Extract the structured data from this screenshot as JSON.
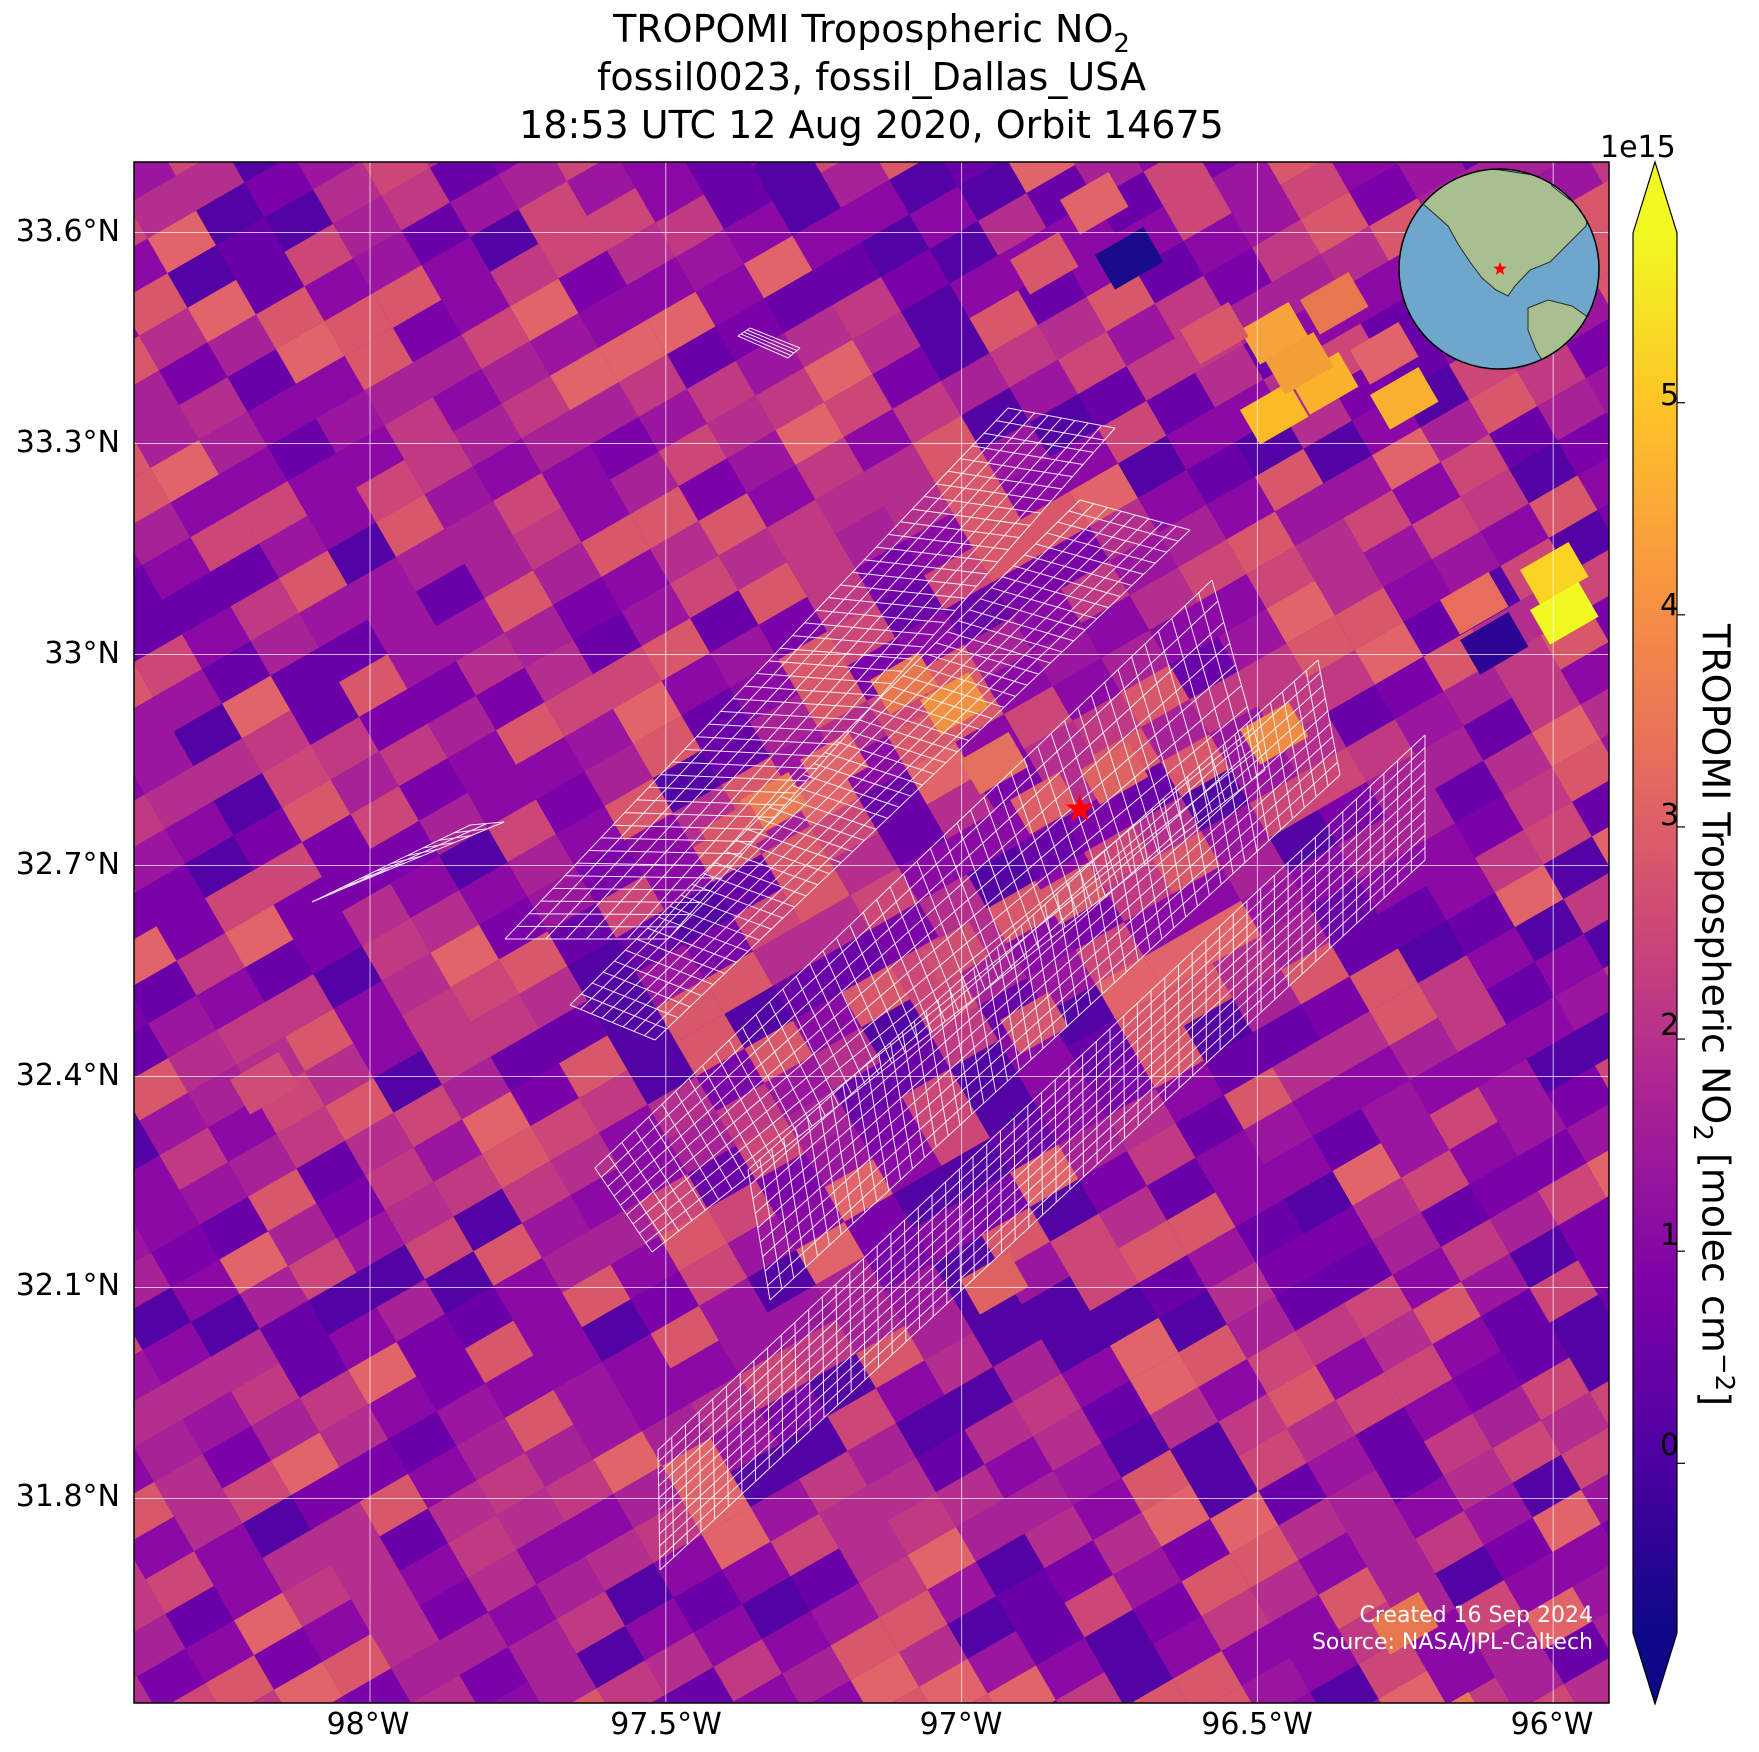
{
  "title": {
    "line1_prefix": "TROPOMI Tropospheric NO",
    "line1_sub": "2",
    "line2": "fossil0023, fossil_Dallas_USA",
    "line3": "18:53 UTC 12 Aug 2020, Orbit 14675"
  },
  "axes": {
    "lat_ticks": [
      "33.6°N",
      "33.3°N",
      "33°N",
      "32.7°N",
      "32.4°N",
      "32.1°N",
      "31.8°N"
    ],
    "lon_ticks": [
      "98°W",
      "97.5°W",
      "97°W",
      "96.5°W",
      "96°W"
    ],
    "lat_values": [
      33.6,
      33.3,
      33.0,
      32.7,
      32.4,
      32.1,
      31.8
    ],
    "lon_values": [
      -98.0,
      -97.5,
      -97.0,
      -96.5,
      -96.0
    ],
    "lon_range": [
      -98.4,
      -95.9
    ],
    "lat_range": [
      31.5,
      33.7
    ],
    "grid": true
  },
  "colorbar": {
    "exponent_label": "1e15",
    "ticks": [
      "5",
      "4",
      "3",
      "2",
      "1",
      "0"
    ],
    "tick_values": [
      5,
      4,
      3,
      2,
      1,
      0
    ],
    "range": [
      -0.8,
      5.8
    ],
    "extend": "both",
    "colormap": "plasma",
    "label_prefix": "TROPOMI Tropospheric NO",
    "label_sub": "2",
    "label_middle": " [molec cm",
    "label_sup": "−2",
    "label_end": "]"
  },
  "target": {
    "name": "fossil_Dallas_USA",
    "lon": -96.8,
    "lat": 32.78,
    "marker": "red-star",
    "color": "#ff0000"
  },
  "inset_globe": {
    "marker": "red-star",
    "ocean_color": "#6ea7cc",
    "land_color": "#a8bf8f"
  },
  "credits": {
    "created": "Created 16 Sep 2024",
    "source": "Source: NASA/JPL-Caltech"
  },
  "colors": {
    "background_pixel": "#8b0aa5",
    "grid_line": "#ffffff",
    "target_footprints": "#ffffff",
    "hotspot": "#f0a03c"
  }
}
